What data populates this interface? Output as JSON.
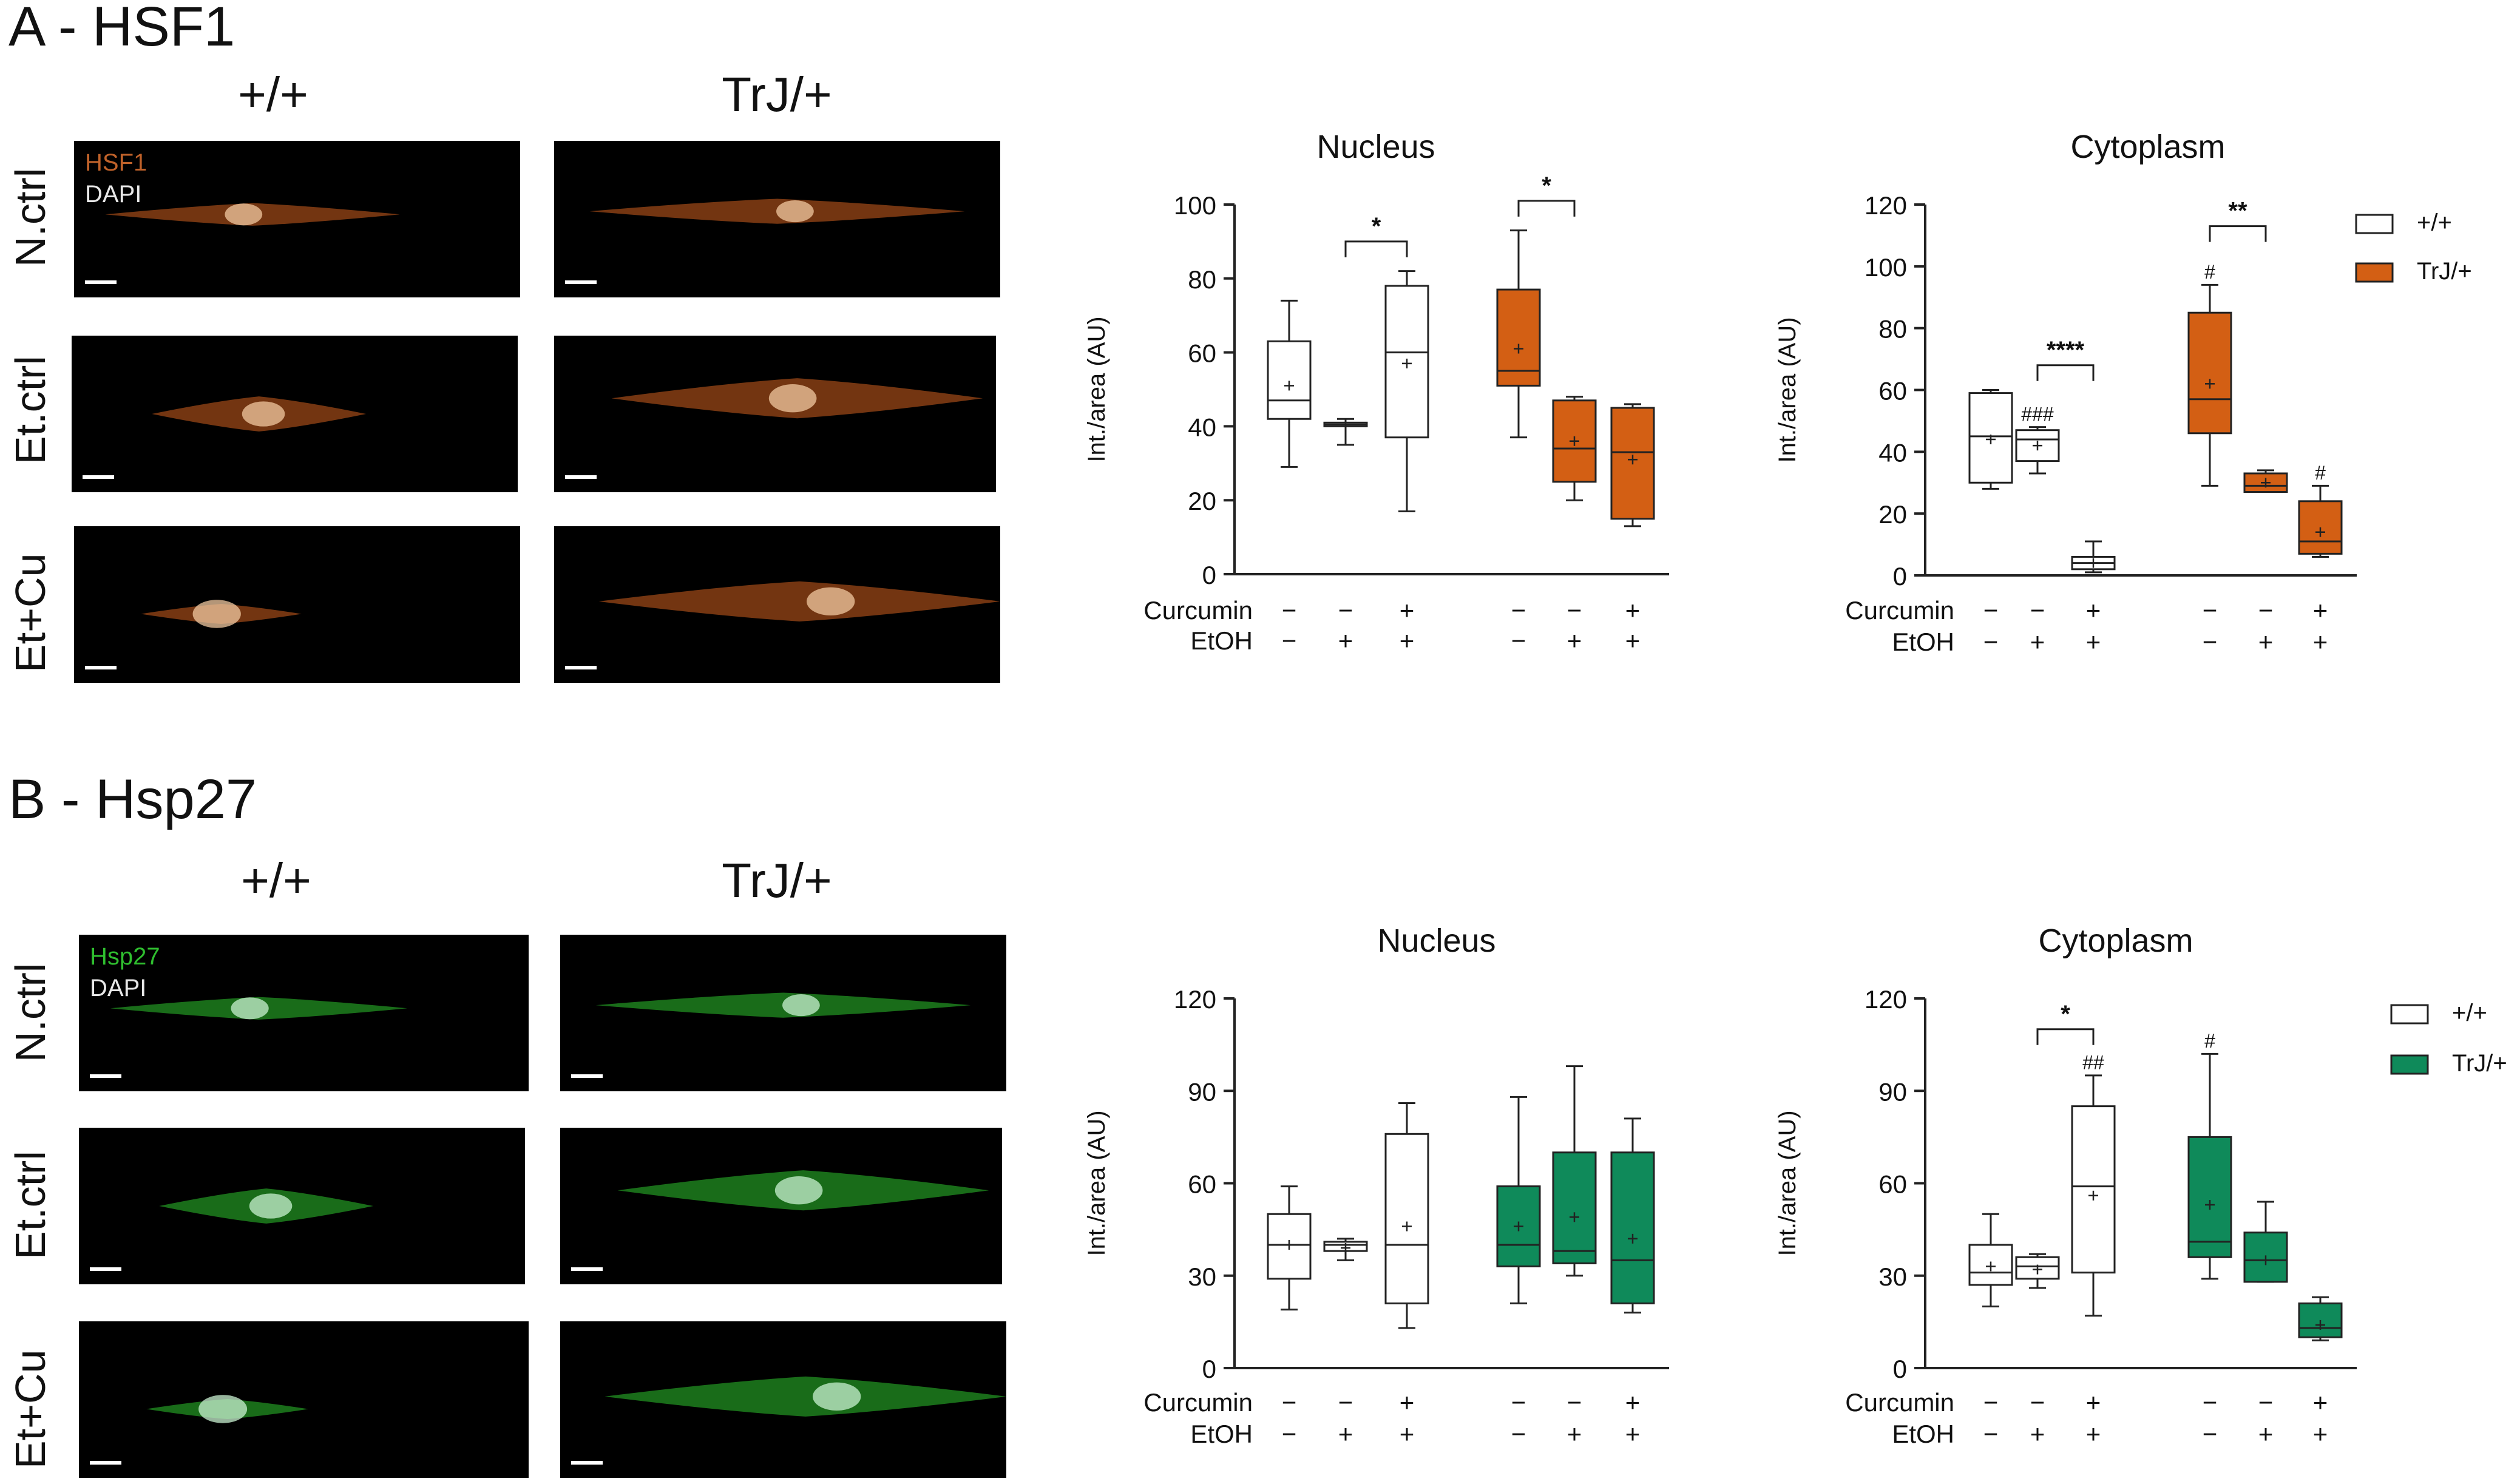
{
  "panels": [
    {
      "id": "A",
      "title": "A - HSF1",
      "genotypes": [
        "+/+",
        "TrJ/+"
      ],
      "row_labels": [
        "N.ctrl",
        "Et.ctrl",
        "Et+Cu"
      ],
      "stain_labels": [
        {
          "text": "HSF1",
          "color": "#c0622a"
        },
        {
          "text": "DAPI",
          "color": "#e8e8e8"
        }
      ],
      "cell_color": "#d2601f",
      "nucleus_color": "#f0c8a0"
    },
    {
      "id": "B",
      "title": "B - Hsp27",
      "genotypes": [
        "+/+",
        "TrJ/+"
      ],
      "row_labels": [
        "N.ctrl",
        "Et.ctrl",
        "Et+Cu"
      ],
      "stain_labels": [
        {
          "text": "Hsp27",
          "color": "#2fbf2f"
        },
        {
          "text": "DAPI",
          "color": "#e8e8e8"
        }
      ],
      "cell_color": "#2ec42e",
      "nucleus_color": "#c8f0d0"
    }
  ],
  "chart_data": [
    {
      "type": "box",
      "panel": "A",
      "title": "Nucleus",
      "ylabel": "Int./area (AU)",
      "ylim": [
        0,
        100
      ],
      "yticks": [
        0,
        20,
        40,
        60,
        80,
        100
      ],
      "fill_color": "#d35f14",
      "legend": [],
      "treatment_labels": [
        "Curcumin",
        "EtOH"
      ],
      "treatment_rows": [
        [
          "−",
          "−",
          "+",
          "−",
          "−",
          "+"
        ],
        [
          "−",
          "+",
          "+",
          "−",
          "+",
          "+"
        ]
      ],
      "groups": [
        {
          "genotype": "+/+",
          "min": 29,
          "q1": 42,
          "median": 47,
          "q3": 63,
          "max": 74,
          "mean": 51
        },
        {
          "genotype": "+/+",
          "min": 35,
          "q1": 40,
          "median": 40.5,
          "q3": 41,
          "max": 42,
          "mean": 40.5
        },
        {
          "genotype": "+/+",
          "min": 17,
          "q1": 37,
          "median": 60,
          "q3": 78,
          "max": 82,
          "mean": 57
        },
        {
          "genotype": "TrJ/+",
          "min": 37,
          "q1": 51,
          "median": 55,
          "q3": 77,
          "max": 93,
          "mean": 61
        },
        {
          "genotype": "TrJ/+",
          "min": 20,
          "q1": 25,
          "median": 34,
          "q3": 47,
          "max": 48,
          "mean": 36
        },
        {
          "genotype": "TrJ/+",
          "min": 13,
          "q1": 15,
          "median": 33,
          "q3": 45,
          "max": 46,
          "mean": 31
        }
      ],
      "brackets": [
        {
          "from": 1,
          "to": 2,
          "y": 90,
          "label": "*"
        },
        {
          "from": 3,
          "to": 4,
          "y": 101,
          "label": "*"
        }
      ],
      "hash_marks": []
    },
    {
      "type": "box",
      "panel": "A",
      "title": "Cytoplasm",
      "ylabel": "Int./area (AU)",
      "ylim": [
        0,
        120
      ],
      "yticks": [
        0,
        20,
        40,
        60,
        80,
        100,
        120
      ],
      "fill_color": "#d35f14",
      "legend": [
        "+/+",
        "TrJ/+"
      ],
      "treatment_labels": [
        "Curcumin",
        "EtOH"
      ],
      "treatment_rows": [
        [
          "−",
          "−",
          "+",
          "−",
          "−",
          "+"
        ],
        [
          "−",
          "+",
          "+",
          "−",
          "+",
          "+"
        ]
      ],
      "groups": [
        {
          "genotype": "+/+",
          "min": 28,
          "q1": 30,
          "median": 45,
          "q3": 59,
          "max": 60,
          "mean": 44
        },
        {
          "genotype": "+/+",
          "min": 33,
          "q1": 37,
          "median": 44,
          "q3": 47,
          "max": 48,
          "mean": 42
        },
        {
          "genotype": "+/+",
          "min": 1,
          "q1": 2,
          "median": 4,
          "q3": 6,
          "max": 11,
          "mean": 4
        },
        {
          "genotype": "TrJ/+",
          "min": 29,
          "q1": 46,
          "median": 57,
          "q3": 85,
          "max": 94,
          "mean": 62
        },
        {
          "genotype": "TrJ/+",
          "min": 27,
          "q1": 27,
          "median": 29,
          "q3": 33,
          "max": 34,
          "mean": 30
        },
        {
          "genotype": "TrJ/+",
          "min": 6,
          "q1": 7,
          "median": 11,
          "q3": 24,
          "max": 29,
          "mean": 14
        }
      ],
      "brackets": [
        {
          "from": 1,
          "to": 2,
          "y": 68,
          "label": "****"
        },
        {
          "from": 3,
          "to": 4,
          "y": 113,
          "label": "**"
        }
      ],
      "hash_marks": [
        {
          "group": 1,
          "y": 50,
          "label": "###"
        },
        {
          "group": 3,
          "y": 96,
          "label": "#"
        },
        {
          "group": 5,
          "y": 31,
          "label": "#"
        }
      ]
    },
    {
      "type": "box",
      "panel": "B",
      "title": "Nucleus",
      "ylabel": "Int./area (AU)",
      "ylim": [
        0,
        120
      ],
      "yticks": [
        0,
        30,
        60,
        90,
        120
      ],
      "fill_color": "#0f8a5a",
      "legend": [],
      "treatment_labels": [
        "Curcumin",
        "EtOH"
      ],
      "treatment_rows": [
        [
          "−",
          "−",
          "+",
          "−",
          "−",
          "+"
        ],
        [
          "−",
          "+",
          "+",
          "−",
          "+",
          "+"
        ]
      ],
      "groups": [
        {
          "genotype": "+/+",
          "min": 19,
          "q1": 29,
          "median": 40,
          "q3": 50,
          "max": 59,
          "mean": 40
        },
        {
          "genotype": "+/+",
          "min": 35,
          "q1": 38,
          "median": 40,
          "q3": 41,
          "max": 42,
          "mean": 39
        },
        {
          "genotype": "+/+",
          "min": 13,
          "q1": 21,
          "median": 40,
          "q3": 76,
          "max": 86,
          "mean": 46
        },
        {
          "genotype": "TrJ/+",
          "min": 21,
          "q1": 33,
          "median": 40,
          "q3": 59,
          "max": 88,
          "mean": 46
        },
        {
          "genotype": "TrJ/+",
          "min": 30,
          "q1": 34,
          "median": 38,
          "q3": 70,
          "max": 98,
          "mean": 49
        },
        {
          "genotype": "TrJ/+",
          "min": 18,
          "q1": 21,
          "median": 35,
          "q3": 70,
          "max": 81,
          "mean": 42
        }
      ],
      "brackets": [],
      "hash_marks": []
    },
    {
      "type": "box",
      "panel": "B",
      "title": "Cytoplasm",
      "ylabel": "Int./area (AU)",
      "ylim": [
        0,
        120
      ],
      "yticks": [
        0,
        30,
        60,
        90,
        120
      ],
      "fill_color": "#0f8a5a",
      "legend": [
        "+/+",
        "TrJ/+"
      ],
      "treatment_labels": [
        "Curcumin",
        "EtOH"
      ],
      "treatment_rows": [
        [
          "−",
          "−",
          "+",
          "−",
          "−",
          "+"
        ],
        [
          "−",
          "+",
          "+",
          "−",
          "+",
          "+"
        ]
      ],
      "groups": [
        {
          "genotype": "+/+",
          "min": 20,
          "q1": 27,
          "median": 31,
          "q3": 40,
          "max": 50,
          "mean": 33
        },
        {
          "genotype": "+/+",
          "min": 26,
          "q1": 29,
          "median": 33,
          "q3": 36,
          "max": 37,
          "mean": 32
        },
        {
          "genotype": "+/+",
          "min": 17,
          "q1": 31,
          "median": 59,
          "q3": 85,
          "max": 95,
          "mean": 56
        },
        {
          "genotype": "TrJ/+",
          "min": 29,
          "q1": 36,
          "median": 41,
          "q3": 75,
          "max": 102,
          "mean": 53
        },
        {
          "genotype": "TrJ/+",
          "min": 28,
          "q1": 28,
          "median": 35,
          "q3": 44,
          "max": 54,
          "mean": 35
        },
        {
          "genotype": "TrJ/+",
          "min": 9,
          "q1": 10,
          "median": 13,
          "q3": 21,
          "max": 23,
          "mean": 14
        }
      ],
      "brackets": [
        {
          "from": 1,
          "to": 2,
          "y": 110,
          "label": "*"
        }
      ],
      "hash_marks": [
        {
          "group": 2,
          "y": 97,
          "label": "##"
        },
        {
          "group": 3,
          "y": 104,
          "label": "#"
        }
      ]
    }
  ]
}
